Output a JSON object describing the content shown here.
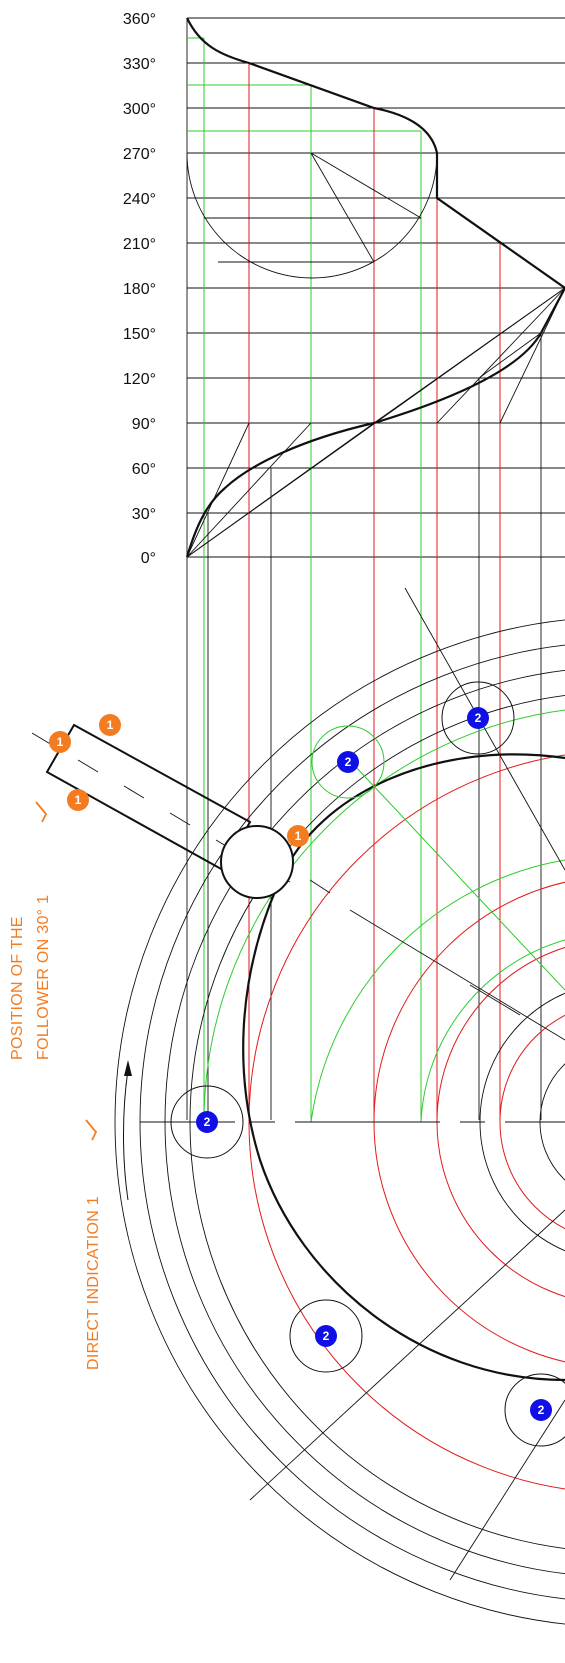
{
  "angle_labels": [
    "360°",
    "330°",
    "300°",
    "270°",
    "240°",
    "210°",
    "180°",
    "150°",
    "120°",
    "90°",
    "60°",
    "30°",
    "0°"
  ],
  "notes": {
    "position_line1": "POSITION OF THE",
    "position_line2": "FOLLOWER ON 30°  1",
    "direct_indication": "DIRECT INDICATION   1"
  },
  "markers": {
    "one": "1",
    "two": "2"
  },
  "colors": {
    "orange": "#f47c20",
    "blue": "#1010e6",
    "red": "#e11a1a",
    "green": "#2ecc2e",
    "ink": "#111111"
  }
}
